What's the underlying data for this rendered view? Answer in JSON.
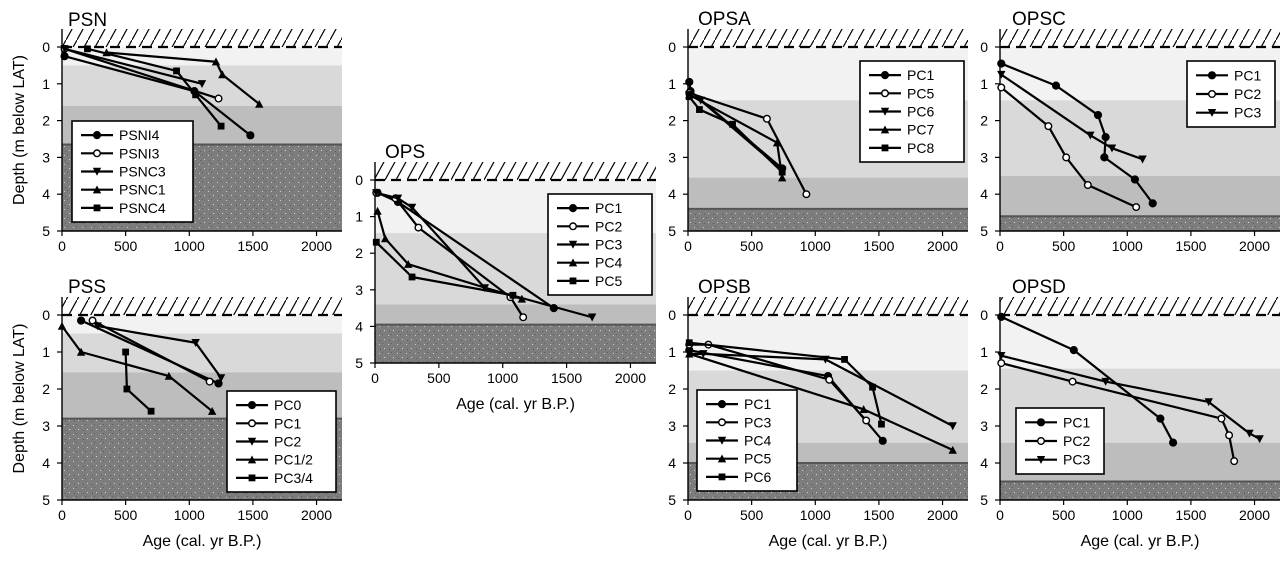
{
  "figure": {
    "shared_ylabel": "Depth (m below LAT)",
    "shared_xlabel": "Age (cal. yr B.P.)"
  },
  "chart_data": [
    {
      "id": "PSN",
      "title": "PSN",
      "type": "line",
      "ylabel": "Depth (m below LAT)",
      "xlabel": "",
      "xlim": [
        0,
        2200
      ],
      "ylim": [
        0,
        5
      ],
      "xticks": [
        0,
        500,
        1000,
        1500,
        2000
      ],
      "yticks": [
        0,
        1,
        2,
        3,
        4,
        5
      ],
      "y_reversed": true,
      "grid": false,
      "legend_position": "bottom-left",
      "zones": [
        0,
        0.5,
        1.6,
        2.65
      ],
      "series": [
        {
          "name": "PSNI4",
          "marker": "circle-filled",
          "x": [
            20,
            1040,
            1480
          ],
          "y": [
            0.25,
            1.2,
            2.4
          ]
        },
        {
          "name": "PSNI3",
          "marker": "circle-open",
          "x": [
            20,
            1230
          ],
          "y": [
            0.05,
            1.4
          ]
        },
        {
          "name": "PSNC3",
          "marker": "triangle-down",
          "x": [
            20,
            1100
          ],
          "y": [
            0.05,
            1.0
          ]
        },
        {
          "name": "PSNC1",
          "marker": "triangle-up",
          "x": [
            350,
            1210,
            1260,
            1550
          ],
          "y": [
            0.15,
            0.4,
            0.75,
            1.55
          ]
        },
        {
          "name": "PSNC4",
          "marker": "square",
          "x": [
            200,
            900,
            1050,
            1250
          ],
          "y": [
            0.05,
            0.65,
            1.3,
            2.15
          ]
        }
      ]
    },
    {
      "id": "PSS",
      "title": "PSS",
      "type": "line",
      "ylabel": "Depth (m below LAT)",
      "xlabel": "Age (cal. yr B.P.)",
      "xlim": [
        0,
        2200
      ],
      "ylim": [
        0,
        5
      ],
      "xticks": [
        0,
        500,
        1000,
        1500,
        2000
      ],
      "yticks": [
        0,
        1,
        2,
        3,
        4,
        5
      ],
      "y_reversed": true,
      "grid": false,
      "legend_position": "bottom-right",
      "zones": [
        0,
        0.5,
        1.55,
        2.8
      ],
      "series": [
        {
          "name": "PC0",
          "marker": "circle-filled",
          "x": [
            150,
            1230
          ],
          "y": [
            0.15,
            1.85
          ]
        },
        {
          "name": "PC1",
          "marker": "circle-open",
          "x": [
            240,
            1160
          ],
          "y": [
            0.15,
            1.8
          ]
        },
        {
          "name": "PC2",
          "marker": "triangle-down",
          "x": [
            280,
            1050,
            1250
          ],
          "y": [
            0.3,
            0.75,
            1.7
          ]
        },
        {
          "name": "PC1/2",
          "marker": "triangle-up",
          "x": [
            0,
            150,
            840,
            1180
          ],
          "y": [
            0.3,
            1.0,
            1.65,
            2.6
          ]
        },
        {
          "name": "PC3/4",
          "marker": "square",
          "x": [
            500,
            510,
            700
          ],
          "y": [
            1.0,
            2.0,
            2.6
          ]
        }
      ]
    },
    {
      "id": "OPS",
      "title": "OPS",
      "type": "line",
      "ylabel": "",
      "xlabel": "Age (cal. yr B.P.)",
      "xlim": [
        0,
        2200
      ],
      "ylim": [
        0,
        5
      ],
      "xticks": [
        0,
        500,
        1000,
        1500,
        2000
      ],
      "yticks": [
        0,
        1,
        2,
        3,
        4,
        5
      ],
      "y_reversed": true,
      "grid": false,
      "legend_position": "top-right",
      "zones": [
        0,
        1.45,
        3.4,
        3.95
      ],
      "series": [
        {
          "name": "PC1",
          "marker": "circle-filled",
          "x": [
            20,
            180,
            1400
          ],
          "y": [
            0.35,
            0.6,
            3.5
          ]
        },
        {
          "name": "PC2",
          "marker": "circle-open",
          "x": [
            10,
            160,
            340,
            1060,
            1160
          ],
          "y": [
            0.35,
            0.5,
            1.3,
            3.2,
            3.75
          ]
        },
        {
          "name": "PC3",
          "marker": "triangle-down",
          "x": [
            10,
            180,
            290,
            860,
            1700
          ],
          "y": [
            0.35,
            0.5,
            0.75,
            2.95,
            3.75
          ]
        },
        {
          "name": "PC4",
          "marker": "triangle-up",
          "x": [
            20,
            80,
            260,
            1150
          ],
          "y": [
            0.85,
            1.6,
            2.3,
            3.25
          ]
        },
        {
          "name": "PC5",
          "marker": "square",
          "x": [
            10,
            290,
            1080
          ],
          "y": [
            1.7,
            2.65,
            3.15
          ]
        }
      ]
    },
    {
      "id": "OPSA",
      "title": "OPSA",
      "type": "line",
      "ylabel": "",
      "xlabel": "",
      "xlim": [
        0,
        2200
      ],
      "ylim": [
        0,
        5
      ],
      "xticks": [
        0,
        500,
        1000,
        1500,
        2000
      ],
      "yticks": [
        0,
        1,
        2,
        3,
        4,
        5
      ],
      "y_reversed": true,
      "grid": false,
      "legend_position": "top-right",
      "zones": [
        0,
        1.45,
        3.55,
        4.4
      ],
      "series": [
        {
          "name": "PC1",
          "marker": "circle-filled",
          "x": [
            10,
            20,
            740
          ],
          "y": [
            0.95,
            1.2,
            3.3
          ]
        },
        {
          "name": "PC5",
          "marker": "circle-open",
          "x": [
            10,
            620,
            930
          ],
          "y": [
            1.25,
            1.95,
            4.0
          ]
        },
        {
          "name": "PC6",
          "marker": "triangle-down",
          "x": [
            10,
            100,
            740
          ],
          "y": [
            1.3,
            1.45,
            3.35
          ]
        },
        {
          "name": "PC7",
          "marker": "triangle-up",
          "x": [
            10,
            700,
            740
          ],
          "y": [
            1.3,
            2.6,
            3.55
          ]
        },
        {
          "name": "PC8",
          "marker": "square",
          "x": [
            10,
            90,
            350,
            740
          ],
          "y": [
            1.35,
            1.7,
            2.1,
            3.4
          ]
        }
      ]
    },
    {
      "id": "OPSB",
      "title": "OPSB",
      "type": "line",
      "ylabel": "",
      "xlabel": "Age (cal. yr B.P.)",
      "xlim": [
        0,
        2200
      ],
      "ylim": [
        0,
        5
      ],
      "xticks": [
        0,
        500,
        1000,
        1500,
        2000
      ],
      "yticks": [
        0,
        1,
        2,
        3,
        4,
        5
      ],
      "y_reversed": true,
      "grid": false,
      "legend_position": "bottom-left",
      "zones": [
        0,
        1.5,
        3.45,
        4.0
      ],
      "series": [
        {
          "name": "PC1",
          "marker": "circle-filled",
          "x": [
            10,
            1100,
            1530
          ],
          "y": [
            0.95,
            1.65,
            3.4
          ]
        },
        {
          "name": "PC3",
          "marker": "circle-open",
          "x": [
            10,
            160,
            1110,
            1400
          ],
          "y": [
            0.8,
            0.8,
            1.75,
            2.85
          ]
        },
        {
          "name": "PC4",
          "marker": "triangle-down",
          "x": [
            10,
            120,
            1080,
            2080
          ],
          "y": [
            1.05,
            1.05,
            1.2,
            3.0
          ]
        },
        {
          "name": "PC5",
          "marker": "triangle-up",
          "x": [
            10,
            1380,
            2080
          ],
          "y": [
            1.05,
            2.55,
            3.65
          ]
        },
        {
          "name": "PC6",
          "marker": "square",
          "x": [
            10,
            1230,
            1450,
            1520
          ],
          "y": [
            0.75,
            1.2,
            1.95,
            2.95
          ]
        }
      ]
    },
    {
      "id": "OPSC",
      "title": "OPSC",
      "type": "line",
      "ylabel": "",
      "xlabel": "",
      "xlim": [
        0,
        2200
      ],
      "ylim": [
        0,
        5
      ],
      "xticks": [
        0,
        500,
        1000,
        1500,
        2000
      ],
      "yticks": [
        0,
        1,
        2,
        3,
        4,
        5
      ],
      "y_reversed": true,
      "grid": false,
      "legend_position": "top-right",
      "zones": [
        0,
        1.45,
        3.5,
        4.6
      ],
      "series": [
        {
          "name": "PC1",
          "marker": "circle-filled",
          "x": [
            10,
            440,
            770,
            830,
            820,
            1060,
            1200
          ],
          "y": [
            0.45,
            1.05,
            1.85,
            2.45,
            3.0,
            3.6,
            4.25
          ]
        },
        {
          "name": "PC2",
          "marker": "circle-open",
          "x": [
            10,
            380,
            520,
            690,
            1070
          ],
          "y": [
            1.1,
            2.15,
            3.0,
            3.75,
            4.35
          ]
        },
        {
          "name": "PC3",
          "marker": "triangle-down",
          "x": [
            10,
            710,
            880,
            1120
          ],
          "y": [
            0.75,
            2.4,
            2.75,
            3.05
          ]
        }
      ]
    },
    {
      "id": "OPSD",
      "title": "OPSD",
      "type": "line",
      "ylabel": "",
      "xlabel": "Age (cal. yr B.P.)",
      "xlim": [
        0,
        2200
      ],
      "ylim": [
        0,
        5
      ],
      "xticks": [
        0,
        500,
        1000,
        1500,
        2000
      ],
      "yticks": [
        0,
        1,
        2,
        3,
        4,
        5
      ],
      "y_reversed": true,
      "grid": false,
      "legend_position": "bottom-left",
      "zones": [
        0,
        1.45,
        3.45,
        4.5
      ],
      "series": [
        {
          "name": "PC1",
          "marker": "circle-filled",
          "x": [
            10,
            580,
            1260,
            1360
          ],
          "y": [
            0.05,
            0.95,
            2.8,
            3.45
          ]
        },
        {
          "name": "PC2",
          "marker": "circle-open",
          "x": [
            10,
            570,
            1740,
            1800,
            1840
          ],
          "y": [
            1.3,
            1.8,
            2.8,
            3.25,
            3.95
          ]
        },
        {
          "name": "PC3",
          "marker": "triangle-down",
          "x": [
            10,
            830,
            1640,
            1960,
            2040
          ],
          "y": [
            1.1,
            1.8,
            2.35,
            3.2,
            3.35
          ]
        }
      ]
    }
  ]
}
